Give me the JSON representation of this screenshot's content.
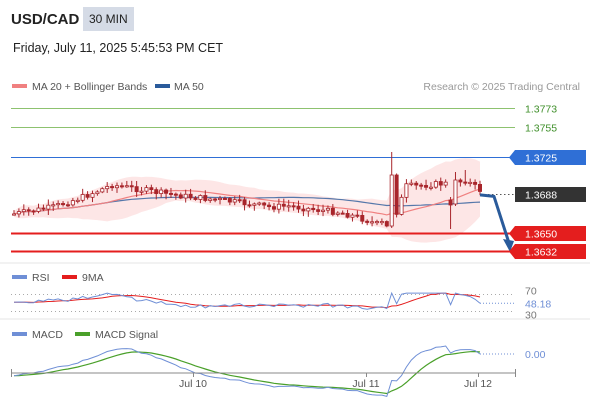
{
  "header": {
    "symbol": "USD/CAD",
    "timeframe": "30 MIN",
    "datetime": "Friday, July 11, 2025 5:45:53 PM CET"
  },
  "legend": {
    "ma20": "MA 20 + Bollinger Bands",
    "ma50": "MA 50",
    "credit": "Research © 2025 Trading Central"
  },
  "colors": {
    "ma20": "#f08080",
    "ma50": "#2a5b9b",
    "bands_fill": "#fde2e2",
    "candle_up": "#a8252b",
    "candle_down": "#a8252b",
    "resistance": "#8dc26f",
    "pivot": "#2f6fd6",
    "support": "#e41e1e",
    "current": "#333333",
    "rsi": "#6f8fd6",
    "rsi_ma": "#e41e1e",
    "macd": "#6f8fd6",
    "macd_signal": "#4aa02a",
    "forecast_arrow": "#2a5b9b"
  },
  "chart_data": [
    {
      "type": "candlestick",
      "name": "price",
      "ylim": [
        1.361,
        1.379
      ],
      "x_ticks": [
        "Jul 10",
        "Jul 11",
        "Jul 12"
      ],
      "levels": [
        {
          "role": "resistance",
          "value": 1.3773,
          "label": "1.3773"
        },
        {
          "role": "resistance",
          "value": 1.3755,
          "label": "1.3755"
        },
        {
          "role": "pivot",
          "value": 1.3725,
          "label": "1.3725"
        },
        {
          "role": "current",
          "value": 1.3688,
          "label": "1.3688"
        },
        {
          "role": "support",
          "value": 1.365,
          "label": "1.3650"
        },
        {
          "role": "support",
          "value": 1.3632,
          "label": "1.3632"
        }
      ],
      "forecast": {
        "from": 1.3688,
        "to": 1.3632
      }
    },
    {
      "type": "line",
      "name": "rsi",
      "legend": [
        "RSI",
        "9MA"
      ],
      "ylim": [
        30,
        70
      ],
      "ticks": [
        "70",
        "30"
      ],
      "current_label": "48.18",
      "current_value": 48.18
    },
    {
      "type": "line",
      "name": "macd",
      "legend": [
        "MACD",
        "MACD Signal"
      ],
      "current_label": "0.00",
      "current_value": 0.0
    }
  ]
}
